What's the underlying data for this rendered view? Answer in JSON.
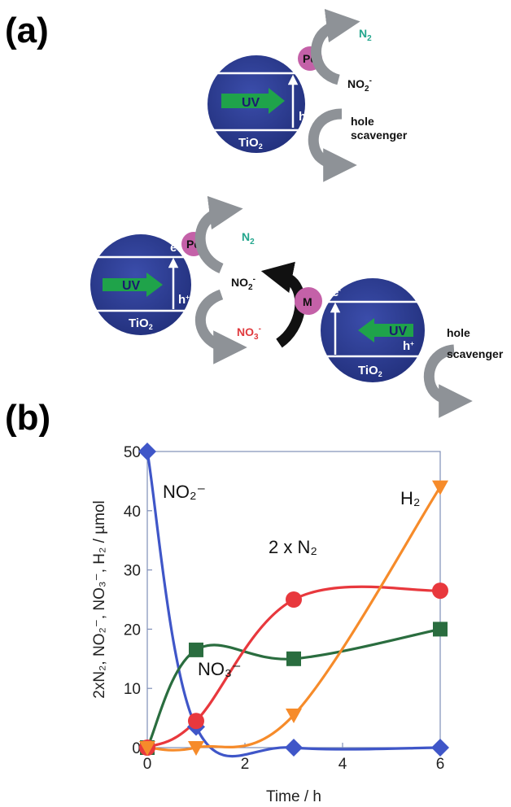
{
  "panel_a": {
    "label": "(a)",
    "top": {
      "n2": "N",
      "n2_sub": "2",
      "pd": "Pd",
      "e": "e",
      "e_sup": "-",
      "uv": "UV",
      "h": "h",
      "h_sup": "+",
      "tio2": "TiO",
      "tio2_sub": "2",
      "no2": "NO",
      "no2_sub": "2",
      "no2_sup": "-",
      "hole": "hole",
      "scavenger": "scavenger"
    },
    "bottom": {
      "n2": "N",
      "n2_sub": "2",
      "pd": "Pd",
      "e_left": "e",
      "e_left_sup": "-",
      "uv_left": "UV",
      "h_left": "h",
      "h_left_sup": "+",
      "tio2_left": "TiO",
      "tio2_left_sub": "2",
      "no2": "NO",
      "no2_sub": "2",
      "no2_sup": "-",
      "no3": "NO",
      "no3_sub": "3",
      "no3_sup": "-",
      "m": "M",
      "e_right": "e",
      "e_right_sup": "-",
      "uv_right": "UV",
      "h_right": "h",
      "h_right_sup": "+",
      "tio2_right": "TiO",
      "tio2_right_sub": "2",
      "hole": "hole",
      "scavenger": "scavenger"
    }
  },
  "colors": {
    "tio2_blue": "#2c3b93",
    "pd_pink": "#c461a8",
    "arrow_grey": "#8e9297",
    "uv_green": "#1fa34a",
    "n2_teal": "#23a68d",
    "no3_red": "#e03a3e",
    "no2_blue": "#3f56c8",
    "no3_green": "#2a6d3f",
    "n2_red": "#e8383d",
    "h2_orange": "#f68b2a"
  },
  "panel_b_label": "(b)",
  "chart_data": {
    "type": "line",
    "xlabel": "Time / h",
    "ylabel": "2xN₂, NO₂⁻, NO₃⁻, H₂ / µmol",
    "xlim": [
      0,
      6
    ],
    "ylim": [
      0,
      50
    ],
    "xticks": [
      "0",
      "2",
      "4",
      "6"
    ],
    "yticks": [
      "0",
      "10",
      "20",
      "30",
      "40",
      "50"
    ],
    "series": [
      {
        "name": "NO₂⁻",
        "label_text": "NO₂⁻",
        "color": "#3f56c8",
        "marker": "diamond",
        "x": [
          0,
          1,
          3,
          6
        ],
        "y": [
          50,
          3.5,
          0,
          0
        ]
      },
      {
        "name": "NO₃⁻",
        "label_text": "NO₃⁻",
        "color": "#2a6d3f",
        "marker": "square",
        "x": [
          0,
          1,
          3,
          6
        ],
        "y": [
          0,
          16.5,
          15,
          20
        ]
      },
      {
        "name": "2 x N₂",
        "label_text": "2 x N₂",
        "color": "#e8383d",
        "marker": "circle",
        "x": [
          0,
          1,
          3,
          6
        ],
        "y": [
          0,
          4.5,
          25,
          26.5
        ]
      },
      {
        "name": "H₂",
        "label_text": "H₂",
        "color": "#f68b2a",
        "marker": "triangle-down",
        "x": [
          0,
          1,
          3,
          6
        ],
        "y": [
          0,
          0,
          5.5,
          44
        ]
      }
    ]
  }
}
